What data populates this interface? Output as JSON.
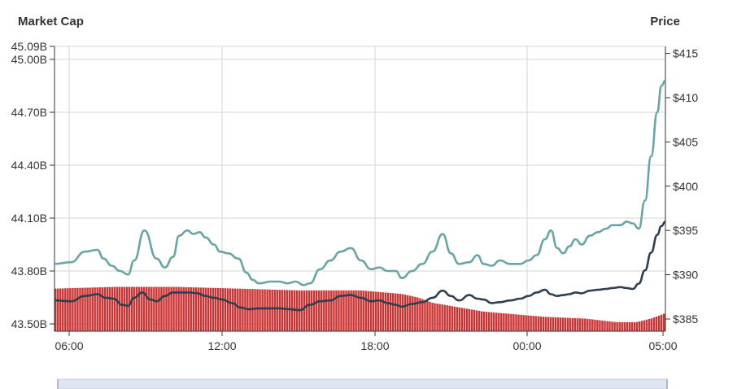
{
  "chart_data": {
    "type": "line",
    "title": "",
    "left_axis": {
      "label": "Market Cap",
      "ticks": [
        "45.09B",
        "45.00B",
        "44.70B",
        "44.40B",
        "44.10B",
        "43.80B",
        "43.50B"
      ],
      "range": [
        43.5,
        45.09
      ]
    },
    "right_axis": {
      "label": "Price",
      "ticks": [
        "$415",
        "$410",
        "$405",
        "$400",
        "$395",
        "$390",
        "$385"
      ],
      "range": [
        384,
        416
      ]
    },
    "x_ticks": [
      "06:00",
      "12:00",
      "18:00",
      "00:00",
      "05:00"
    ],
    "grid": true,
    "series": [
      {
        "role": "market_cap",
        "axis": "left",
        "color": "#6aa5a5",
        "x": [
          0,
          0.8,
          1.5,
          2.1,
          2.4,
          2.8,
          3.2,
          3.6,
          3.9,
          4.4,
          5.0,
          5.4,
          5.8,
          6.1,
          6.5,
          6.8,
          7.1,
          7.4,
          7.8,
          8.1,
          8.5,
          9.0,
          9.4,
          9.7,
          10.0,
          10.6,
          11.0,
          11.4,
          11.8,
          12.2,
          12.5,
          13.0,
          13.5,
          14.0,
          14.5,
          15.0,
          15.5,
          15.9,
          16.3,
          16.7,
          17.0,
          17.5,
          18.0,
          18.5,
          19.0,
          19.4,
          19.8,
          20.3,
          20.7,
          21.0,
          21.4,
          21.8,
          22.3,
          22.8,
          23.2,
          23.6,
          24.0,
          24.3,
          24.6,
          24.9,
          25.2,
          25.5,
          25.8,
          26.2,
          26.6,
          27.0,
          27.3,
          27.7,
          28.0,
          28.3,
          28.6,
          28.9,
          29.2,
          29.5,
          29.7,
          29.9
        ],
        "values": [
          43.84,
          43.85,
          43.91,
          43.92,
          43.87,
          43.83,
          43.8,
          43.78,
          43.86,
          44.03,
          43.87,
          43.82,
          43.88,
          44.0,
          44.03,
          44.01,
          44.02,
          43.99,
          43.95,
          43.91,
          43.9,
          43.87,
          43.79,
          43.75,
          43.73,
          43.74,
          43.74,
          43.73,
          43.74,
          43.72,
          43.73,
          43.81,
          43.86,
          43.91,
          43.93,
          43.86,
          43.81,
          43.82,
          43.8,
          43.8,
          43.76,
          43.8,
          43.84,
          43.91,
          44.01,
          43.9,
          43.84,
          43.85,
          43.89,
          43.84,
          43.83,
          43.86,
          43.84,
          43.84,
          43.86,
          43.89,
          43.98,
          44.03,
          43.93,
          43.9,
          43.94,
          43.98,
          43.95,
          44.0,
          44.02,
          44.04,
          44.06,
          44.06,
          44.08,
          44.07,
          44.04,
          44.2,
          44.45,
          44.7,
          44.85,
          44.88
        ]
      },
      {
        "role": "price",
        "axis": "right",
        "color": "#2f3f4f",
        "x": [
          0,
          0.8,
          1.5,
          2.1,
          2.5,
          2.9,
          3.3,
          3.6,
          3.9,
          4.3,
          4.7,
          5.0,
          5.4,
          5.8,
          6.2,
          6.6,
          7.0,
          7.4,
          7.8,
          8.2,
          8.7,
          9.1,
          9.5,
          10.0,
          10.5,
          11.0,
          11.5,
          12.0,
          12.5,
          13.0,
          13.5,
          14.0,
          14.5,
          15.0,
          15.5,
          15.9,
          16.3,
          16.7,
          17.0,
          17.5,
          18.0,
          18.5,
          19.0,
          19.4,
          19.8,
          20.3,
          20.7,
          21.0,
          21.4,
          21.8,
          22.3,
          22.8,
          23.2,
          23.6,
          24.0,
          24.3,
          24.6,
          24.9,
          25.2,
          25.5,
          25.8,
          26.2,
          26.6,
          27.0,
          27.3,
          27.7,
          28.0,
          28.3,
          28.6,
          28.9,
          29.2,
          29.5,
          29.7,
          29.9
        ],
        "values": [
          387.1,
          387.0,
          387.6,
          387.8,
          387.4,
          387.3,
          386.6,
          386.5,
          387.4,
          388.0,
          387.2,
          387.0,
          387.6,
          388.0,
          388.0,
          388.0,
          387.9,
          387.6,
          387.4,
          387.2,
          386.8,
          386.3,
          386.1,
          386.2,
          386.2,
          386.2,
          386.1,
          386.0,
          386.6,
          387.0,
          387.1,
          387.6,
          387.7,
          387.4,
          387.0,
          387.1,
          386.8,
          386.6,
          386.4,
          386.7,
          386.9,
          387.4,
          388.2,
          387.6,
          387.1,
          387.7,
          387.3,
          387.2,
          386.8,
          386.9,
          387.1,
          387.3,
          387.6,
          388.0,
          388.3,
          387.8,
          387.6,
          387.7,
          387.8,
          388.0,
          387.9,
          388.2,
          388.3,
          388.4,
          388.5,
          388.6,
          388.5,
          388.4,
          389.0,
          390.5,
          392.5,
          394.5,
          395.5,
          396.0
        ]
      },
      {
        "role": "volume",
        "axis": "left",
        "color": "#cc3333",
        "x": [
          0,
          3,
          6,
          9,
          12,
          15,
          17,
          17.8,
          18.5,
          19.5,
          21,
          24,
          26,
          27.5,
          28.5,
          29.2,
          29.9
        ],
        "values": [
          43.7,
          43.71,
          43.71,
          43.7,
          43.69,
          43.69,
          43.67,
          43.65,
          43.62,
          43.6,
          43.57,
          43.54,
          43.53,
          43.51,
          43.51,
          43.53,
          43.56
        ]
      }
    ]
  },
  "colors": {
    "market_cap_line": "#6aa5a5",
    "price_line": "#2f3f4f",
    "volume_bars": "#cc3333",
    "navigator_fill": "#dfe6f3"
  }
}
